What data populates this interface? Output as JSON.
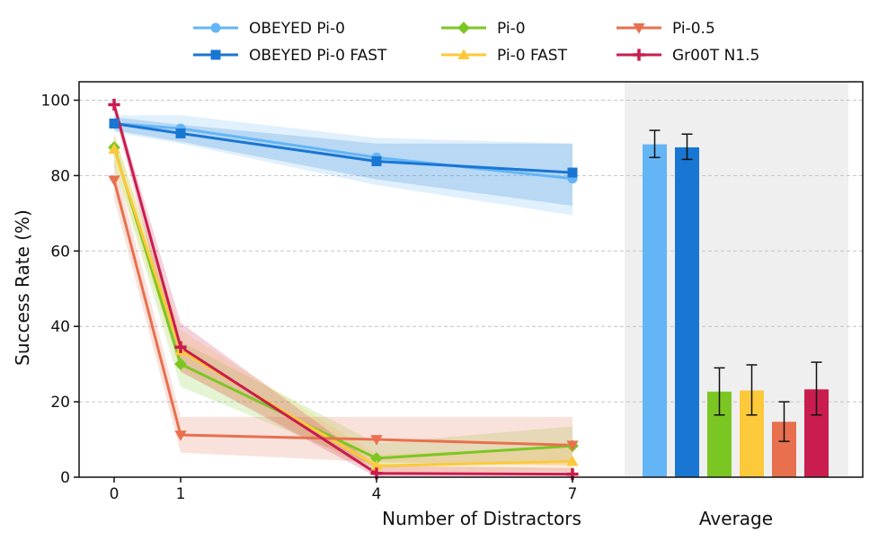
{
  "chart_data": {
    "type": "line",
    "xlabel": "Number of Distractors",
    "ylabel": "Success Rate (%)",
    "ylim": [
      0,
      105
    ],
    "yticks": [
      0,
      20,
      40,
      60,
      80,
      100
    ],
    "x": [
      0,
      1,
      4,
      7
    ],
    "xticks": [
      "0",
      "1",
      "4",
      "7"
    ],
    "grid": "horizontal dashed",
    "legend_position": "top-center",
    "average_label": "Average",
    "series": [
      {
        "name": "OBEYED Pi-0",
        "color": "#64b5f6",
        "marker": "circle",
        "values": [
          93.8,
          92.5,
          84.8,
          79.2
        ],
        "lower": [
          91.5,
          88.5,
          77.5,
          69.5
        ],
        "upper": [
          96.0,
          96.0,
          90.0,
          88.5
        ],
        "average": 88.3,
        "avg_err": [
          84.8,
          92.0
        ]
      },
      {
        "name": "OBEYED Pi-0 FAST",
        "color": "#1976d2",
        "marker": "square",
        "values": [
          93.8,
          91.2,
          83.8,
          80.8
        ],
        "lower": [
          92.0,
          89.0,
          79.0,
          72.0
        ],
        "upper": [
          95.5,
          93.5,
          88.5,
          88.5
        ],
        "average": 87.5,
        "avg_err": [
          84.3,
          91.0
        ]
      },
      {
        "name": "Pi-0",
        "color": "#7cc623",
        "marker": "diamond",
        "values": [
          87.5,
          30.0,
          5.0,
          8.3
        ],
        "lower": [
          83.0,
          24.0,
          2.5,
          4.0
        ],
        "upper": [
          91.0,
          36.0,
          9.0,
          13.5
        ],
        "average": 22.7,
        "avg_err": [
          16.5,
          29.0
        ]
      },
      {
        "name": "Pi-0 FAST",
        "color": "#fcc93b",
        "marker": "triangle-up",
        "values": [
          87.0,
          33.5,
          3.0,
          4.2
        ],
        "lower": [
          83.0,
          28.0,
          1.0,
          1.5
        ],
        "upper": [
          91.0,
          39.0,
          6.0,
          8.0
        ],
        "average": 23.0,
        "avg_err": [
          16.5,
          29.8
        ]
      },
      {
        "name": "Pi-0.5",
        "color": "#e8704e",
        "marker": "triangle-down",
        "values": [
          78.8,
          11.2,
          10.0,
          8.5
        ],
        "lower": [
          74.0,
          6.5,
          4.0,
          3.0
        ],
        "upper": [
          84.0,
          16.0,
          16.0,
          16.0
        ],
        "average": 14.7,
        "avg_err": [
          9.5,
          20.0
        ]
      },
      {
        "name": "Gr00T N1.5",
        "color": "#c91c4f",
        "marker": "plus",
        "values": [
          98.8,
          34.5,
          1.0,
          0.8
        ],
        "lower": [
          97.0,
          28.0,
          0.0,
          0.0
        ],
        "upper": [
          100.0,
          41.0,
          3.0,
          2.5
        ],
        "average": 23.3,
        "avg_err": [
          16.5,
          30.5
        ]
      }
    ]
  }
}
